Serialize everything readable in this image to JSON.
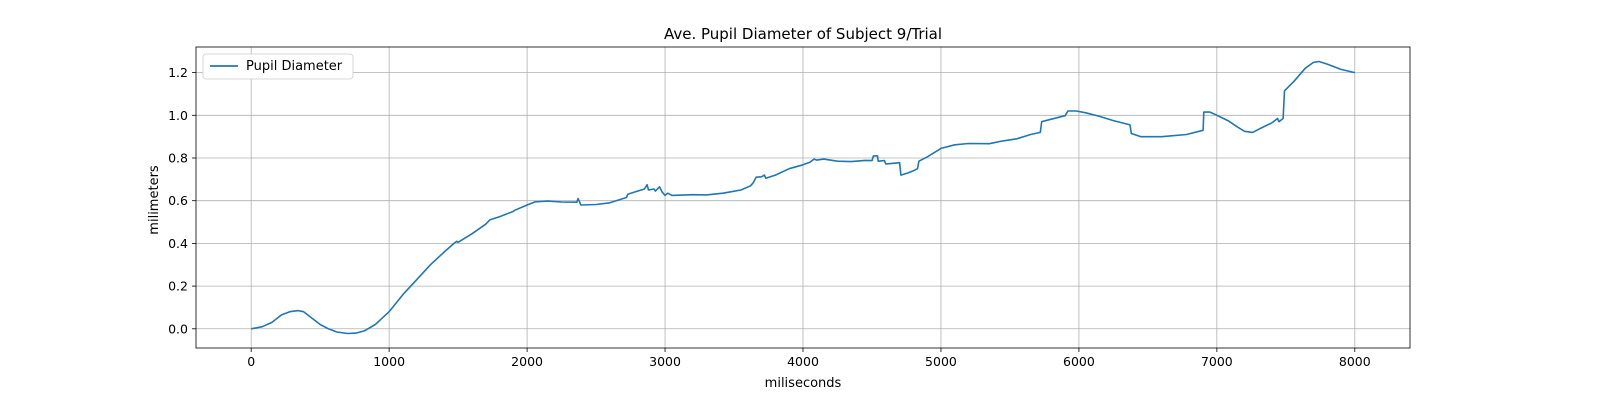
{
  "chart_data": {
    "type": "line",
    "title": "Ave. Pupil Diameter of Subject 9/Trial",
    "xlabel": "miliseconds",
    "ylabel": "milimeters",
    "xlim": [
      -400,
      8400
    ],
    "ylim": [
      -0.09,
      1.32
    ],
    "xticks": [
      0,
      1000,
      2000,
      3000,
      4000,
      5000,
      6000,
      7000,
      8000
    ],
    "xtick_labels": [
      "0",
      "1000",
      "2000",
      "3000",
      "4000",
      "5000",
      "6000",
      "7000",
      "8000"
    ],
    "yticks": [
      0.0,
      0.2,
      0.4,
      0.6,
      0.8,
      1.0,
      1.2
    ],
    "ytick_labels": [
      "0.0",
      "0.2",
      "0.4",
      "0.6",
      "0.8",
      "1.0",
      "1.2"
    ],
    "grid": true,
    "legend_position": "upper-left",
    "line_color": "#1f77b4",
    "series": [
      {
        "name": "Pupil Diameter",
        "color": "#1f77b4",
        "points": [
          [
            0,
            0.0
          ],
          [
            80,
            0.01
          ],
          [
            150,
            0.03
          ],
          [
            220,
            0.065
          ],
          [
            280,
            0.08
          ],
          [
            340,
            0.085
          ],
          [
            380,
            0.08
          ],
          [
            440,
            0.05
          ],
          [
            500,
            0.02
          ],
          [
            560,
            0.0
          ],
          [
            620,
            -0.015
          ],
          [
            700,
            -0.022
          ],
          [
            760,
            -0.02
          ],
          [
            820,
            -0.01
          ],
          [
            900,
            0.02
          ],
          [
            1000,
            0.08
          ],
          [
            1100,
            0.16
          ],
          [
            1200,
            0.23
          ],
          [
            1300,
            0.3
          ],
          [
            1400,
            0.36
          ],
          [
            1470,
            0.4
          ],
          [
            1490,
            0.41
          ],
          [
            1500,
            0.405
          ],
          [
            1600,
            0.445
          ],
          [
            1700,
            0.49
          ],
          [
            1730,
            0.51
          ],
          [
            1800,
            0.525
          ],
          [
            1900,
            0.55
          ],
          [
            1910,
            0.555
          ],
          [
            2000,
            0.58
          ],
          [
            2060,
            0.595
          ],
          [
            2150,
            0.598
          ],
          [
            2250,
            0.594
          ],
          [
            2360,
            0.593
          ],
          [
            2370,
            0.61
          ],
          [
            2390,
            0.58
          ],
          [
            2500,
            0.582
          ],
          [
            2600,
            0.59
          ],
          [
            2720,
            0.615
          ],
          [
            2730,
            0.63
          ],
          [
            2800,
            0.645
          ],
          [
            2850,
            0.655
          ],
          [
            2870,
            0.675
          ],
          [
            2880,
            0.65
          ],
          [
            2920,
            0.655
          ],
          [
            2930,
            0.645
          ],
          [
            2960,
            0.665
          ],
          [
            2980,
            0.64
          ],
          [
            3000,
            0.625
          ],
          [
            3020,
            0.635
          ],
          [
            3050,
            0.625
          ],
          [
            3200,
            0.628
          ],
          [
            3300,
            0.627
          ],
          [
            3420,
            0.635
          ],
          [
            3550,
            0.65
          ],
          [
            3620,
            0.67
          ],
          [
            3640,
            0.685
          ],
          [
            3660,
            0.71
          ],
          [
            3700,
            0.712
          ],
          [
            3720,
            0.72
          ],
          [
            3730,
            0.705
          ],
          [
            3800,
            0.72
          ],
          [
            3900,
            0.75
          ],
          [
            4000,
            0.768
          ],
          [
            4050,
            0.78
          ],
          [
            4080,
            0.795
          ],
          [
            4100,
            0.79
          ],
          [
            4150,
            0.795
          ],
          [
            4250,
            0.785
          ],
          [
            4350,
            0.783
          ],
          [
            4450,
            0.789
          ],
          [
            4500,
            0.788
          ],
          [
            4510,
            0.81
          ],
          [
            4540,
            0.81
          ],
          [
            4545,
            0.785
          ],
          [
            4590,
            0.788
          ],
          [
            4600,
            0.772
          ],
          [
            4700,
            0.778
          ],
          [
            4710,
            0.72
          ],
          [
            4760,
            0.73
          ],
          [
            4800,
            0.74
          ],
          [
            4830,
            0.75
          ],
          [
            4840,
            0.785
          ],
          [
            4900,
            0.805
          ],
          [
            5000,
            0.845
          ],
          [
            5100,
            0.862
          ],
          [
            5200,
            0.868
          ],
          [
            5350,
            0.867
          ],
          [
            5450,
            0.88
          ],
          [
            5550,
            0.89
          ],
          [
            5650,
            0.91
          ],
          [
            5720,
            0.92
          ],
          [
            5730,
            0.97
          ],
          [
            5800,
            0.982
          ],
          [
            5900,
            0.998
          ],
          [
            5920,
            1.02
          ],
          [
            5980,
            1.02
          ],
          [
            6050,
            1.012
          ],
          [
            6150,
            0.995
          ],
          [
            6250,
            0.975
          ],
          [
            6370,
            0.955
          ],
          [
            6380,
            0.915
          ],
          [
            6450,
            0.9
          ],
          [
            6600,
            0.9
          ],
          [
            6780,
            0.91
          ],
          [
            6900,
            0.93
          ],
          [
            6905,
            1.015
          ],
          [
            6950,
            1.015
          ],
          [
            7000,
            1.0
          ],
          [
            7080,
            0.975
          ],
          [
            7150,
            0.945
          ],
          [
            7200,
            0.925
          ],
          [
            7260,
            0.92
          ],
          [
            7320,
            0.94
          ],
          [
            7400,
            0.965
          ],
          [
            7440,
            0.985
          ],
          [
            7450,
            0.97
          ],
          [
            7480,
            0.985
          ],
          [
            7490,
            1.115
          ],
          [
            7560,
            1.16
          ],
          [
            7640,
            1.22
          ],
          [
            7700,
            1.248
          ],
          [
            7740,
            1.252
          ],
          [
            7800,
            1.24
          ],
          [
            7900,
            1.215
          ],
          [
            8000,
            1.2
          ]
        ]
      }
    ]
  }
}
